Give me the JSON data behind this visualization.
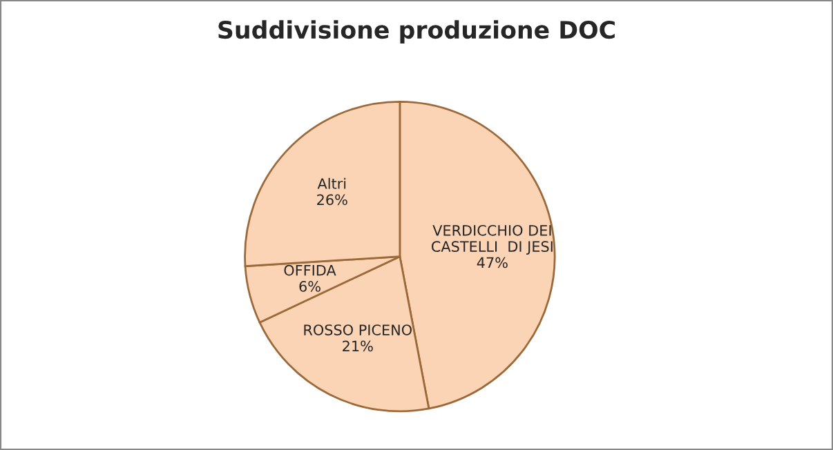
{
  "chart_data": {
    "type": "pie",
    "title": "Suddivisione produzione DOC",
    "categories": [
      "VERDICCHIO DEI\nCASTELLI  DI JESI",
      "ROSSO PICENO",
      "OFFIDA",
      "Altri"
    ],
    "values": [
      47,
      21,
      6,
      26
    ],
    "value_labels": [
      "47%",
      "21%",
      "6%",
      "26%"
    ],
    "colors": [
      "#fad4b4",
      "#fad4b4",
      "#fad4b4",
      "#fad4b4"
    ],
    "legend": false
  }
}
